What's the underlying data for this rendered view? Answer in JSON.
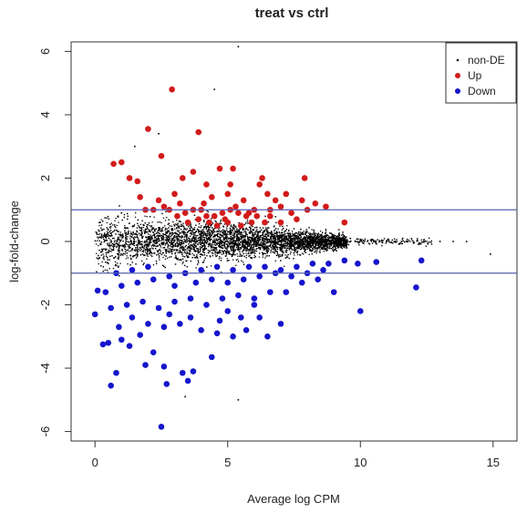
{
  "chart_data": {
    "type": "scatter",
    "title": "treat vs ctrl",
    "xlabel": "Average log CPM",
    "ylabel": "log-fold-change",
    "xlim": [
      -0.9,
      15.9
    ],
    "ylim": [
      -6.3,
      6.3
    ],
    "xticks": [
      0,
      5,
      10,
      15
    ],
    "xtick_labels": [
      "0",
      "5",
      "10",
      "15"
    ],
    "yticks": [
      -6,
      -4,
      -2,
      0,
      2,
      4,
      6
    ],
    "ytick_labels": [
      "-6",
      "-4",
      "-2",
      "0",
      "2",
      "4",
      "6"
    ],
    "grid": false,
    "legend_position": "top-right",
    "reference_lines_y": [
      1,
      -1
    ],
    "series": [
      {
        "name": "non-DE",
        "color": "#000000",
        "marker": "dot",
        "description": "dense cloud of several thousand genes between x~0 and x~9, logFC mostly within -1..1, narrowing toward high CPM",
        "sample_points": [
          [
            0.2,
            0.6
          ],
          [
            0.5,
            -0.7
          ],
          [
            1.0,
            0.9
          ],
          [
            2.0,
            -0.8
          ],
          [
            3.0,
            0.5
          ],
          [
            4.0,
            -0.4
          ],
          [
            5.0,
            0.3
          ],
          [
            6.0,
            -0.3
          ],
          [
            7.0,
            0.2
          ],
          [
            8.0,
            -0.2
          ],
          [
            9.0,
            0.1
          ],
          [
            10.0,
            0.05
          ],
          [
            10.5,
            0.0
          ],
          [
            11.0,
            0.0
          ],
          [
            12.0,
            -0.05
          ],
          [
            13.0,
            0.0
          ],
          [
            13.5,
            0.0
          ],
          [
            14.0,
            0.0
          ],
          [
            14.9,
            -0.4
          ],
          [
            5.4,
            6.15
          ],
          [
            4.5,
            4.8
          ],
          [
            2.4,
            3.4
          ],
          [
            1.5,
            3.0
          ],
          [
            5.4,
            -5.0
          ],
          [
            3.4,
            -4.9
          ]
        ]
      },
      {
        "name": "Up",
        "color": "#d21a1a",
        "marker": "filled-circle",
        "points": [
          [
            2.9,
            4.8
          ],
          [
            2.0,
            3.55
          ],
          [
            3.9,
            3.45
          ],
          [
            0.7,
            2.45
          ],
          [
            1.0,
            2.5
          ],
          [
            2.5,
            2.7
          ],
          [
            1.3,
            2.0
          ],
          [
            1.6,
            1.9
          ],
          [
            3.3,
            2.0
          ],
          [
            3.7,
            2.2
          ],
          [
            4.7,
            2.3
          ],
          [
            5.2,
            2.3
          ],
          [
            4.2,
            1.8
          ],
          [
            5.0,
            1.5
          ],
          [
            6.2,
            1.8
          ],
          [
            7.2,
            1.5
          ],
          [
            7.9,
            2.0
          ],
          [
            6.3,
            2.0
          ],
          [
            8.3,
            1.2
          ],
          [
            8.7,
            1.1
          ],
          [
            9.4,
            0.6
          ],
          [
            8.0,
            1.0
          ],
          [
            7.4,
            0.9
          ],
          [
            7.0,
            1.1
          ],
          [
            6.6,
            0.8
          ],
          [
            6.1,
            0.8
          ],
          [
            5.7,
            0.8
          ],
          [
            5.4,
            0.9
          ],
          [
            5.1,
            1.0
          ],
          [
            4.8,
            0.9
          ],
          [
            4.5,
            0.8
          ],
          [
            4.2,
            0.8
          ],
          [
            4.0,
            1.0
          ],
          [
            3.7,
            1.0
          ],
          [
            3.4,
            0.9
          ],
          [
            3.1,
            0.8
          ],
          [
            2.8,
            1.0
          ],
          [
            2.4,
            1.3
          ],
          [
            1.7,
            1.4
          ],
          [
            1.9,
            1.0
          ],
          [
            2.2,
            1.0
          ],
          [
            3.0,
            1.5
          ],
          [
            4.4,
            1.4
          ],
          [
            5.6,
            1.3
          ],
          [
            6.8,
            1.3
          ],
          [
            7.6,
            0.7
          ],
          [
            6.4,
            0.6
          ],
          [
            5.9,
            0.6
          ],
          [
            5.5,
            0.5
          ],
          [
            5.0,
            0.6
          ],
          [
            4.6,
            0.5
          ],
          [
            4.3,
            0.6
          ],
          [
            3.9,
            0.7
          ],
          [
            3.5,
            0.6
          ],
          [
            5.3,
            1.1
          ],
          [
            6.0,
            1.0
          ],
          [
            6.6,
            1.0
          ],
          [
            7.0,
            0.6
          ],
          [
            4.9,
            0.7
          ],
          [
            5.8,
            0.9
          ],
          [
            2.6,
            1.1
          ],
          [
            3.2,
            1.2
          ],
          [
            4.1,
            1.2
          ],
          [
            5.1,
            1.8
          ],
          [
            6.5,
            1.5
          ],
          [
            7.8,
            1.3
          ]
        ]
      },
      {
        "name": "Down",
        "color": "#1515cc",
        "marker": "filled-circle",
        "points": [
          [
            2.5,
            -5.85
          ],
          [
            0.6,
            -4.55
          ],
          [
            0.8,
            -4.15
          ],
          [
            1.9,
            -3.9
          ],
          [
            2.6,
            -3.95
          ],
          [
            3.3,
            -4.15
          ],
          [
            3.7,
            -4.1
          ],
          [
            2.7,
            -4.5
          ],
          [
            3.5,
            -4.4
          ],
          [
            4.4,
            -3.65
          ],
          [
            2.2,
            -3.5
          ],
          [
            1.3,
            -3.3
          ],
          [
            0.3,
            -3.25
          ],
          [
            0.5,
            -3.2
          ],
          [
            1.0,
            -3.1
          ],
          [
            1.7,
            -2.95
          ],
          [
            2.6,
            -2.7
          ],
          [
            3.2,
            -2.6
          ],
          [
            4.0,
            -2.8
          ],
          [
            5.2,
            -3.0
          ],
          [
            5.7,
            -2.8
          ],
          [
            6.5,
            -3.0
          ],
          [
            7.0,
            -2.6
          ],
          [
            4.7,
            -2.5
          ],
          [
            5.5,
            -2.4
          ],
          [
            6.2,
            -2.4
          ],
          [
            0.0,
            -2.3
          ],
          [
            0.6,
            -2.1
          ],
          [
            1.2,
            -2.0
          ],
          [
            1.8,
            -1.9
          ],
          [
            2.4,
            -2.1
          ],
          [
            3.0,
            -1.9
          ],
          [
            3.6,
            -1.8
          ],
          [
            4.2,
            -2.0
          ],
          [
            4.8,
            -1.8
          ],
          [
            5.4,
            -1.7
          ],
          [
            6.0,
            -1.8
          ],
          [
            6.6,
            -1.6
          ],
          [
            7.2,
            -1.6
          ],
          [
            7.8,
            -1.3
          ],
          [
            8.4,
            -1.2
          ],
          [
            9.0,
            -1.6
          ],
          [
            10.0,
            -2.2
          ],
          [
            8.8,
            -0.7
          ],
          [
            8.2,
            -0.7
          ],
          [
            9.4,
            -0.6
          ],
          [
            9.9,
            -0.7
          ],
          [
            10.6,
            -0.65
          ],
          [
            12.3,
            -0.6
          ],
          [
            12.1,
            -1.45
          ],
          [
            7.6,
            -0.8
          ],
          [
            7.0,
            -0.9
          ],
          [
            6.4,
            -0.8
          ],
          [
            5.8,
            -0.8
          ],
          [
            5.2,
            -0.9
          ],
          [
            4.6,
            -0.8
          ],
          [
            4.0,
            -0.9
          ],
          [
            3.4,
            -1.0
          ],
          [
            2.8,
            -1.1
          ],
          [
            2.2,
            -1.2
          ],
          [
            1.6,
            -1.3
          ],
          [
            1.0,
            -1.4
          ],
          [
            0.4,
            -1.6
          ],
          [
            0.1,
            -1.55
          ],
          [
            0.8,
            -1.0
          ],
          [
            1.4,
            -0.9
          ],
          [
            2.0,
            -0.8
          ],
          [
            3.0,
            -1.4
          ],
          [
            3.8,
            -1.3
          ],
          [
            4.4,
            -1.2
          ],
          [
            5.0,
            -1.3
          ],
          [
            5.6,
            -1.2
          ],
          [
            6.2,
            -1.1
          ],
          [
            6.8,
            -1.0
          ],
          [
            7.4,
            -1.1
          ],
          [
            8.0,
            -1.0
          ],
          [
            8.6,
            -0.9
          ],
          [
            1.4,
            -2.4
          ],
          [
            2.0,
            -2.6
          ],
          [
            2.8,
            -2.3
          ],
          [
            3.6,
            -2.4
          ],
          [
            4.6,
            -2.9
          ],
          [
            5.0,
            -2.2
          ],
          [
            6.0,
            -2.0
          ],
          [
            0.9,
            -2.7
          ]
        ]
      }
    ]
  }
}
